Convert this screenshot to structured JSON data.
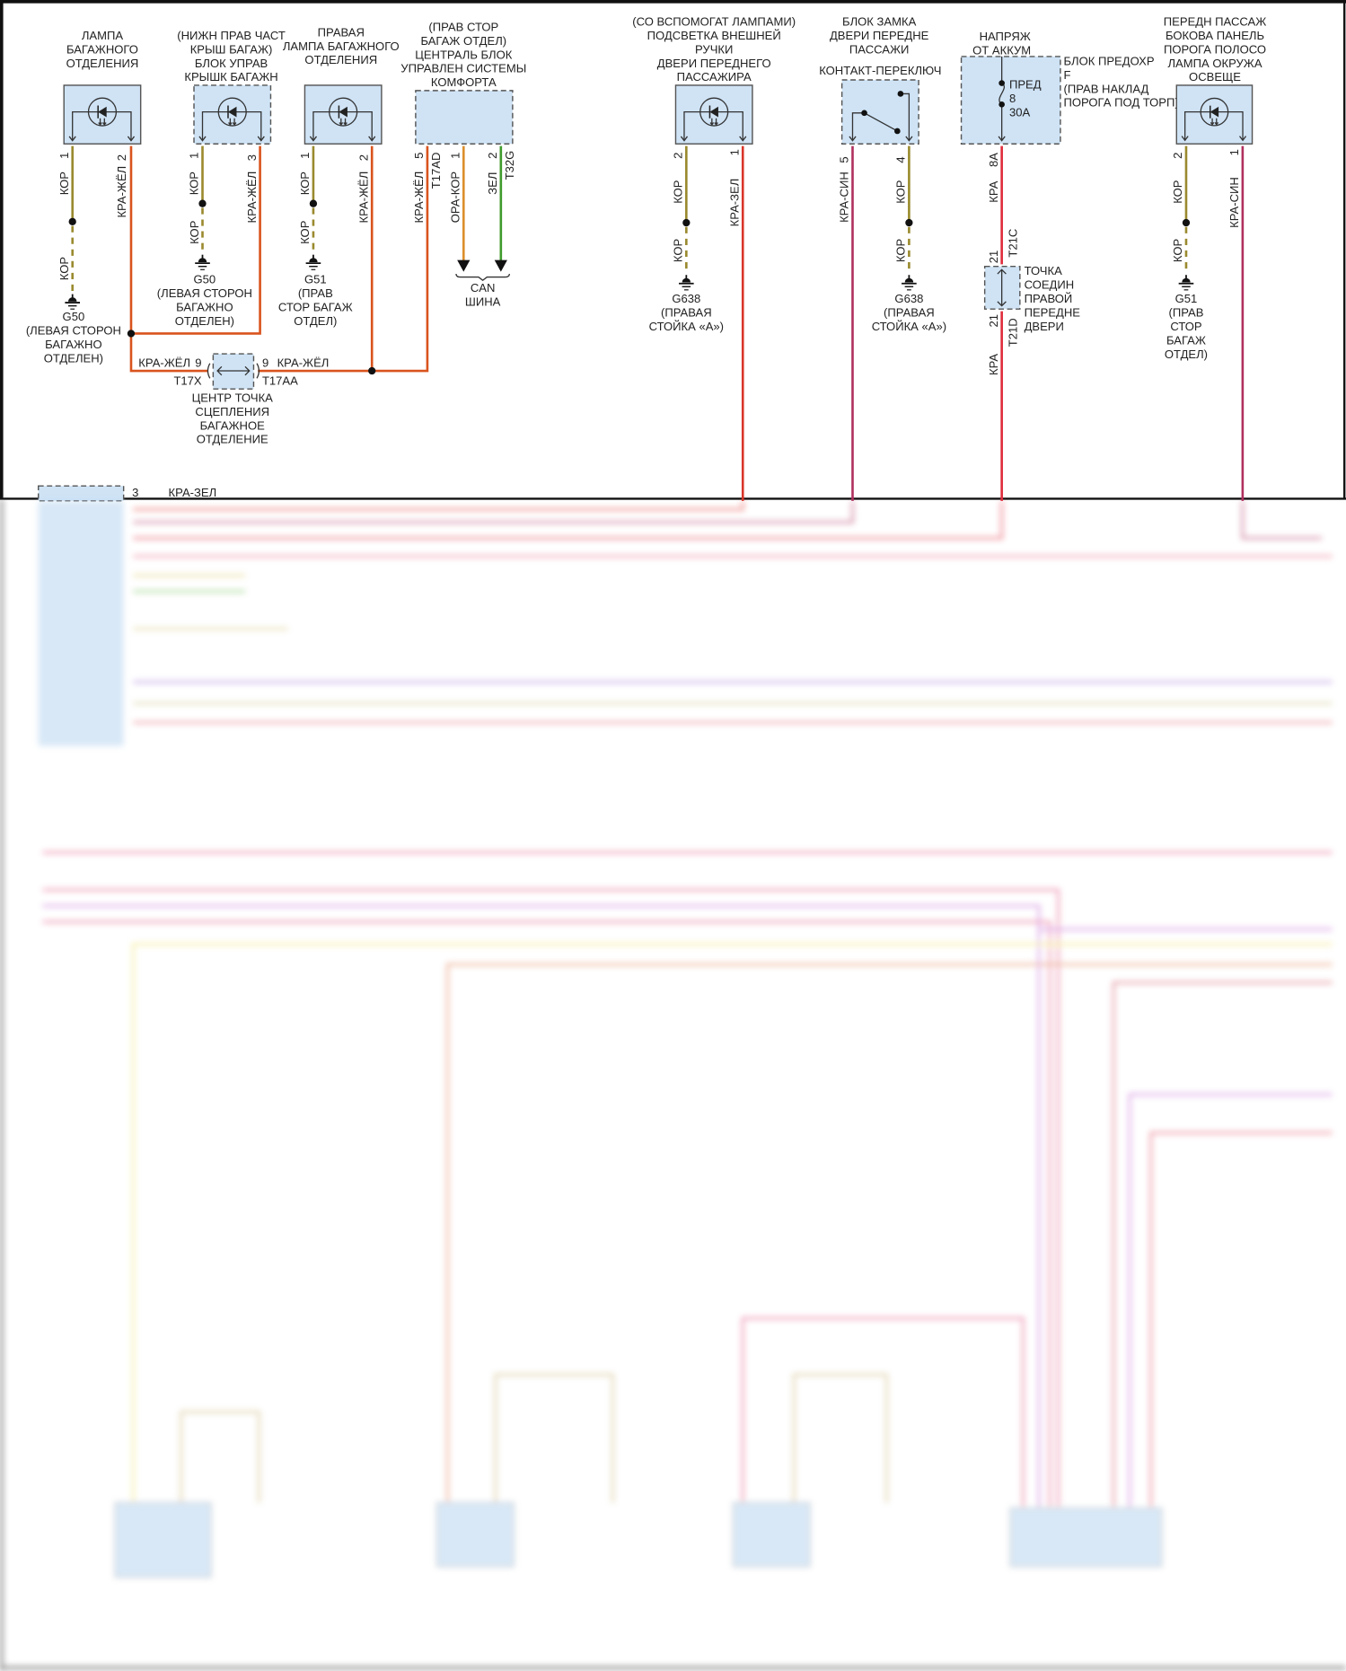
{
  "wire_colors": {
    "KOR": "#9a8a2e",
    "KRA_ZHEL": "#d9541e",
    "ORA_KOR": "#dc8f2c",
    "ZEL": "#3f9b2c",
    "KRA_ZEL": "#d8362a",
    "KRA_SIN": "#b0305e",
    "KRA": "#e02c3c",
    "component_fill": "#cfe3f5"
  },
  "components": {
    "trunk_lamp": {
      "title": [
        "ЛАМПА",
        "БАГАЖНОГО",
        "ОТДЕЛЕНИЯ"
      ],
      "pins": [
        "1",
        "2"
      ],
      "wires": [
        "КОР",
        "КРА-ЖЁЛ"
      ],
      "ground_wire": "КОР",
      "ground": {
        "id": "G50",
        "desc": [
          "(ЛЕВАЯ СТОРОН",
          "БАГАЖНО",
          "ОТДЕЛЕН)"
        ]
      }
    },
    "trunk_lid_unit": {
      "title": [
        "(НИЖН ПРАВ ЧАСТ",
        "КРЫШ БАГАЖ)",
        "БЛОК УПРАВ",
        "КРЫШК БАГАЖН"
      ],
      "pins": [
        "1",
        "3"
      ],
      "wires": [
        "КОР",
        "КРА-ЖЁЛ"
      ],
      "ground_wire": "КОР",
      "ground": {
        "id": "G50",
        "desc": [
          "(ЛЕВАЯ СТОРОН",
          "БАГАЖНО",
          "ОТДЕЛЕН)"
        ]
      }
    },
    "right_trunk_lamp": {
      "title": [
        "ПРАВАЯ",
        "ЛАМПА БАГАЖНОГО",
        "ОТДЕЛЕНИЯ"
      ],
      "pins": [
        "1",
        "2"
      ],
      "wires": [
        "КОР",
        "КРА-ЖЁЛ"
      ],
      "ground_wire": "КОР",
      "ground": {
        "id": "G51",
        "desc": [
          "(ПРАВ",
          "СТОР БАГАЖ",
          "ОТДЕЛ)"
        ]
      }
    },
    "comfort_unit": {
      "title": [
        "(ПРАВ СТОР",
        "БАГАЖ ОТДЕЛ)",
        "ЦЕНТРАЛЬ БЛОК",
        "УПРАВЛЕН СИСТЕМЫ",
        "КОМФОРТА"
      ],
      "pins": [
        "5",
        "1",
        "2"
      ],
      "connectors": [
        "T17AD",
        "T32G"
      ],
      "wires": [
        "КРА-ЖЁЛ",
        "ОРА-КОР",
        "ЗЕЛ"
      ],
      "bus": [
        "CAN",
        "ШИНА"
      ]
    },
    "trunk_connector": {
      "left_wire": "КРА-ЖЁЛ",
      "left_pin": "9",
      "left_id": "T17X",
      "right_pin": "9",
      "right_wire": "КРА-ЖЁЛ",
      "right_id": "T17AA",
      "title": [
        "ЦЕНТР ТОЧКА",
        "СЦЕПЛЕНИЯ",
        "БАГАЖНОЕ",
        "ОТДЕЛЕНИЕ"
      ]
    },
    "handle_lamp": {
      "title": [
        "(СО ВСПОМОГАТ ЛАМПАМИ)",
        "ПОДСВЕТКА ВНЕШНЕЙ",
        "РУЧКИ",
        "ДВЕРИ ПЕРЕДНЕГО",
        "ПАССАЖИРА"
      ],
      "pins": [
        "2",
        "1"
      ],
      "wires": [
        "КОР",
        "КРА-ЗЕЛ"
      ],
      "ground_wire": "КОР",
      "ground": {
        "id": "G638",
        "desc": [
          "(ПРАВАЯ",
          "СТОЙКА «А»)"
        ]
      }
    },
    "door_lock": {
      "title": [
        "БЛОК ЗАМКА",
        "ДВЕРИ ПЕРЕДНЕ",
        "ПАССАЖИ"
      ],
      "switch_label": "КОНТАКТ-ПЕРЕКЛЮЧ",
      "pins": [
        "5",
        "4"
      ],
      "wires": [
        "КРА-СИН",
        "КОР"
      ],
      "ground_wire": "КОР",
      "ground": {
        "id": "G638",
        "desc": [
          "(ПРАВАЯ",
          "СТОЙКА «А»)"
        ]
      }
    },
    "fuse_box": {
      "supply": [
        "НАПРЯЖ",
        "ОТ АККУМ"
      ],
      "label": [
        "БЛОК ПРЕДОХР",
        "F",
        "(ПРАВ НАКЛАД",
        "ПОРОГА ПОД ТОРП)"
      ],
      "fuse": [
        "ПРЕД",
        "8",
        "30А"
      ],
      "pin": "8A",
      "wire": "КРА"
    },
    "door_connector": {
      "top_pin": "21",
      "top_id": "T21C",
      "bottom_pin": "21",
      "bottom_id": "T21D",
      "title": [
        "ТОЧКА",
        "СОЕДИН",
        "ПРАВОЙ",
        "ПЕРЕДНЕ",
        "ДВЕРИ"
      ],
      "wire_below": "КРА"
    },
    "sill_lamp": {
      "title": [
        "ПЕРЕДН ПАССАЖ",
        "БОКОВА ПАНЕЛЬ",
        "ПОРОГА ПОЛОСО",
        "ЛАМПА ОКРУЖА",
        "ОСВЕЩЕ"
      ],
      "pins": [
        "2",
        "1"
      ],
      "wires": [
        "КОР",
        "КРА-СИН"
      ],
      "ground_wire": "КОР",
      "ground": {
        "id": "G51",
        "desc": [
          "(ПРАВ",
          "СТОР",
          "БАГАЖ",
          "ОТДЕЛ)"
        ]
      }
    },
    "door_module": {
      "pin": "3",
      "wire": "КРА-ЗЕЛ"
    }
  }
}
